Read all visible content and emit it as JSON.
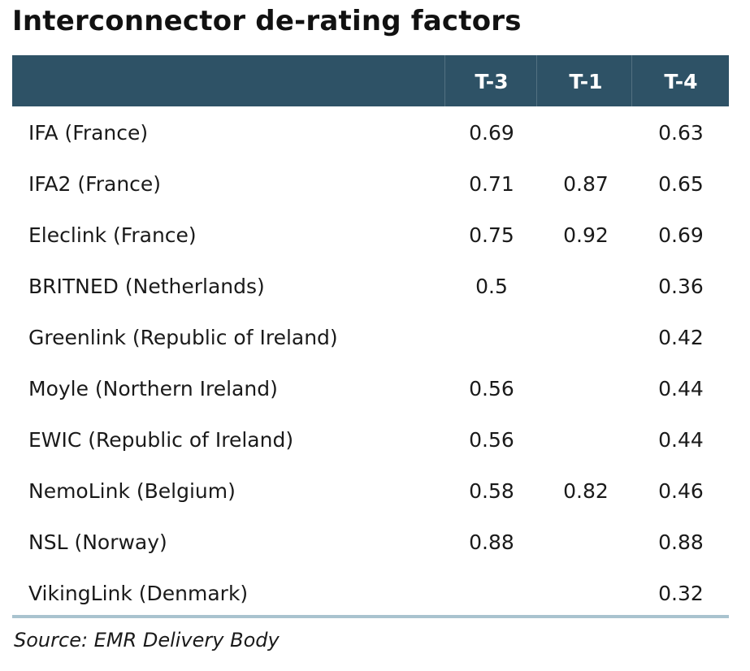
{
  "title": "Interconnector de-rating factors",
  "source": "Source: EMR Delivery Body",
  "colors": {
    "header_bg": "#2e5266",
    "header_text": "#ffffff",
    "bottom_rule": "#a9c3cf"
  },
  "chart_data": {
    "type": "table",
    "title": "Interconnector de-rating factors",
    "columns": [
      "",
      "T-3",
      "T-1",
      "T-4"
    ],
    "rows": [
      {
        "name": "IFA (France)",
        "t3": "0.69",
        "t1": "",
        "t4": "0.63"
      },
      {
        "name": "IFA2 (France)",
        "t3": "0.71",
        "t1": "0.87",
        "t4": "0.65"
      },
      {
        "name": "Eleclink (France)",
        "t3": "0.75",
        "t1": "0.92",
        "t4": "0.69"
      },
      {
        "name": "BRITNED (Netherlands)",
        "t3": "0.5",
        "t1": "",
        "t4": "0.36"
      },
      {
        "name": "Greenlink (Republic of Ireland)",
        "t3": "",
        "t1": "",
        "t4": "0.42"
      },
      {
        "name": "Moyle (Northern Ireland)",
        "t3": "0.56",
        "t1": "",
        "t4": "0.44"
      },
      {
        "name": "EWIC (Republic of Ireland)",
        "t3": "0.56",
        "t1": "",
        "t4": "0.44"
      },
      {
        "name": "NemoLink (Belgium)",
        "t3": "0.58",
        "t1": "0.82",
        "t4": "0.46"
      },
      {
        "name": "NSL (Norway)",
        "t3": "0.88",
        "t1": "",
        "t4": "0.88"
      },
      {
        "name": "VikingLink (Denmark)",
        "t3": "",
        "t1": "",
        "t4": "0.32"
      }
    ]
  }
}
